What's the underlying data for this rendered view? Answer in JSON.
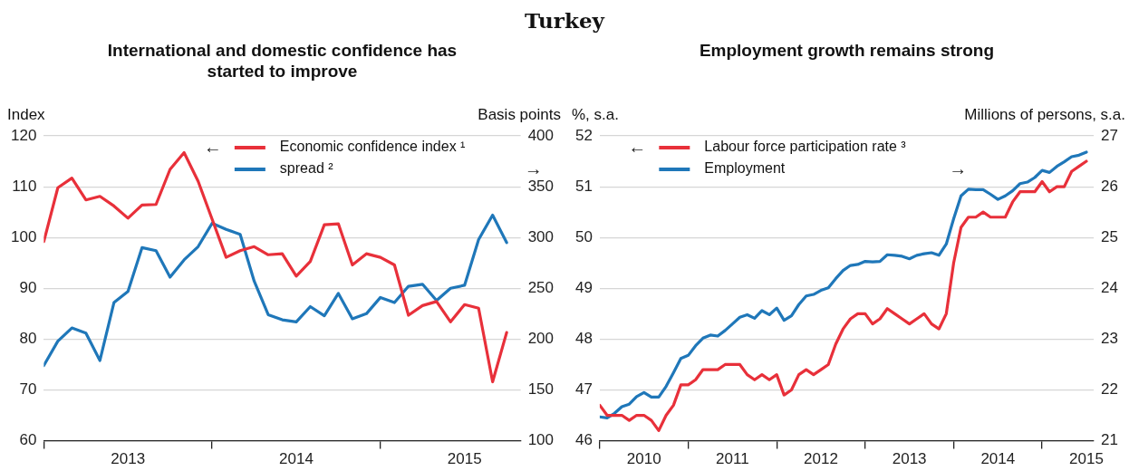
{
  "chart_data": [
    {
      "type": "line",
      "title": "Turkey",
      "subtitle": "International and domestic confidence has started to improve",
      "ylabel": "Index",
      "y2label": "Basis points",
      "legend": "top",
      "grid": "y",
      "annotations": [
        "←",
        "→"
      ],
      "xlim": [
        "2013-01-01",
        "2015-11-01"
      ],
      "xticks": [
        {
          "value": "2013-01-01",
          "label": null
        },
        {
          "value": "2013-07-01",
          "label": "2013"
        },
        {
          "value": "2014-01-01",
          "label": null
        },
        {
          "value": "2014-07-01",
          "label": "2014"
        },
        {
          "value": "2015-01-01",
          "label": null
        },
        {
          "value": "2015-07-01",
          "label": "2015"
        }
      ],
      "ylim": [
        60,
        120
      ],
      "yticks": [
        60,
        70,
        80,
        90,
        100,
        110,
        120
      ],
      "y2lim": [
        100,
        400
      ],
      "y2ticks": [
        100,
        150,
        200,
        250,
        300,
        350,
        400
      ],
      "x": [
        "2013-01",
        "2013-02",
        "2013-03",
        "2013-04",
        "2013-05",
        "2013-06",
        "2013-07",
        "2013-08",
        "2013-09",
        "2013-10",
        "2013-11",
        "2013-12",
        "2014-01",
        "2014-02",
        "2014-03",
        "2014-04",
        "2014-05",
        "2014-06",
        "2014-07",
        "2014-08",
        "2014-09",
        "2014-10",
        "2014-11",
        "2014-12",
        "2015-01",
        "2015-02",
        "2015-03",
        "2015-04",
        "2015-05",
        "2015-06",
        "2015-07",
        "2015-08",
        "2015-09",
        "2015-10"
      ],
      "series": [
        {
          "name": "Economic confidence index ¹",
          "color": "#e8303a",
          "values": [
            99.2,
            109.8,
            111.7,
            107.4,
            108.1,
            106.2,
            103.8,
            106.4,
            106.5,
            113.4,
            116.7,
            111.1,
            103.6,
            96.1,
            97.4,
            98.2,
            96.6,
            96.8,
            92.4,
            95.3,
            102.5,
            102.7,
            94.6,
            96.8,
            96.1,
            94.6,
            84.7,
            86.6,
            87.4,
            83.4,
            86.8,
            86.1,
            71.6,
            81.3
          ]
        },
        {
          "name": "spread ²",
          "color": "#1f77b9",
          "axis": "y2",
          "values": [
            174,
            198,
            211,
            206,
            179,
            236,
            247,
            290,
            287,
            261,
            278,
            291,
            314,
            308,
            303,
            257,
            224,
            219,
            217,
            232,
            223,
            245,
            220,
            225,
            241,
            236,
            252,
            254,
            238,
            250,
            253,
            298,
            322,
            295
          ]
        }
      ]
    },
    {
      "type": "line",
      "subtitle": "Employment growth remains strong",
      "ylabel": "%, s.a.",
      "y2label": "Millions of persons, s.a.",
      "legend": "top left",
      "grid": "y",
      "annotations": [
        "←",
        "→"
      ],
      "xlim": [
        "2010-01-01",
        "2015-08-01"
      ],
      "xticks": [
        {
          "value": "2010-01-01",
          "label": null
        },
        {
          "value": "2010-07-01",
          "label": "2010"
        },
        {
          "value": "2011-01-01",
          "label": null
        },
        {
          "value": "2011-07-01",
          "label": "2011"
        },
        {
          "value": "2012-01-01",
          "label": null
        },
        {
          "value": "2012-07-01",
          "label": "2012"
        },
        {
          "value": "2013-01-01",
          "label": null
        },
        {
          "value": "2013-07-01",
          "label": "2013"
        },
        {
          "value": "2014-01-01",
          "label": null
        },
        {
          "value": "2014-07-01",
          "label": "2014"
        },
        {
          "value": "2015-01-01",
          "label": null
        },
        {
          "value": "2015-07-01",
          "label": "2015"
        }
      ],
      "ylim": [
        46,
        52
      ],
      "yticks": [
        46,
        47,
        48,
        49,
        50,
        51,
        52
      ],
      "y2lim": [
        21,
        27
      ],
      "y2ticks": [
        21,
        22,
        23,
        24,
        25,
        26,
        27
      ],
      "x": [
        "2010-01",
        "2010-02",
        "2010-03",
        "2010-04",
        "2010-05",
        "2010-06",
        "2010-07",
        "2010-08",
        "2010-09",
        "2010-10",
        "2010-11",
        "2010-12",
        "2011-01",
        "2011-02",
        "2011-03",
        "2011-04",
        "2011-05",
        "2011-06",
        "2011-07",
        "2011-08",
        "2011-09",
        "2011-10",
        "2011-11",
        "2011-12",
        "2012-01",
        "2012-02",
        "2012-03",
        "2012-04",
        "2012-05",
        "2012-06",
        "2012-07",
        "2012-08",
        "2012-09",
        "2012-10",
        "2012-11",
        "2012-12",
        "2013-01",
        "2013-02",
        "2013-03",
        "2013-04",
        "2013-05",
        "2013-06",
        "2013-07",
        "2013-08",
        "2013-09",
        "2013-10",
        "2013-11",
        "2013-12",
        "2014-01",
        "2014-02",
        "2014-03",
        "2014-04",
        "2014-05",
        "2014-06",
        "2014-07",
        "2014-08",
        "2014-09",
        "2014-10",
        "2014-11",
        "2014-12",
        "2015-01",
        "2015-02",
        "2015-03",
        "2015-04",
        "2015-05",
        "2015-06",
        "2015-07"
      ],
      "series": [
        {
          "name": "Labour force participation rate ³",
          "color": "#e8303a",
          "values": [
            46.7,
            46.5,
            46.5,
            46.5,
            46.4,
            46.5,
            46.5,
            46.4,
            46.2,
            46.5,
            46.7,
            47.1,
            47.1,
            47.2,
            47.4,
            47.4,
            47.4,
            47.5,
            47.5,
            47.5,
            47.3,
            47.2,
            47.3,
            47.2,
            47.3,
            46.9,
            47.0,
            47.3,
            47.4,
            47.3,
            47.4,
            47.5,
            47.9,
            48.2,
            48.4,
            48.5,
            48.5,
            48.3,
            48.4,
            48.6,
            48.5,
            48.4,
            48.3,
            48.4,
            48.5,
            48.3,
            48.2,
            48.5,
            49.5,
            50.2,
            50.4,
            50.4,
            50.5,
            50.4,
            50.4,
            50.4,
            50.7,
            50.9,
            50.9,
            50.9,
            51.1,
            50.9,
            51.0,
            51.0,
            51.3,
            51.4,
            51.5
          ]
        },
        {
          "name": "Employment",
          "color": "#1f77b9",
          "axis": "y2",
          "values": [
            21.47,
            21.45,
            21.54,
            21.67,
            21.72,
            21.87,
            21.95,
            21.86,
            21.86,
            22.07,
            22.34,
            22.62,
            22.68,
            22.87,
            23.02,
            23.08,
            23.06,
            23.17,
            23.3,
            23.43,
            23.48,
            23.41,
            23.56,
            23.48,
            23.61,
            23.37,
            23.46,
            23.68,
            23.85,
            23.88,
            23.96,
            24.01,
            24.19,
            24.35,
            24.45,
            24.47,
            24.53,
            24.52,
            24.53,
            24.66,
            24.65,
            24.63,
            24.58,
            24.65,
            24.68,
            24.7,
            24.65,
            24.87,
            25.37,
            25.82,
            25.95,
            25.94,
            25.94,
            25.85,
            25.75,
            25.82,
            25.92,
            26.06,
            26.09,
            26.18,
            26.32,
            26.28,
            26.4,
            26.49,
            26.59,
            26.62,
            26.68
          ]
        }
      ]
    }
  ]
}
